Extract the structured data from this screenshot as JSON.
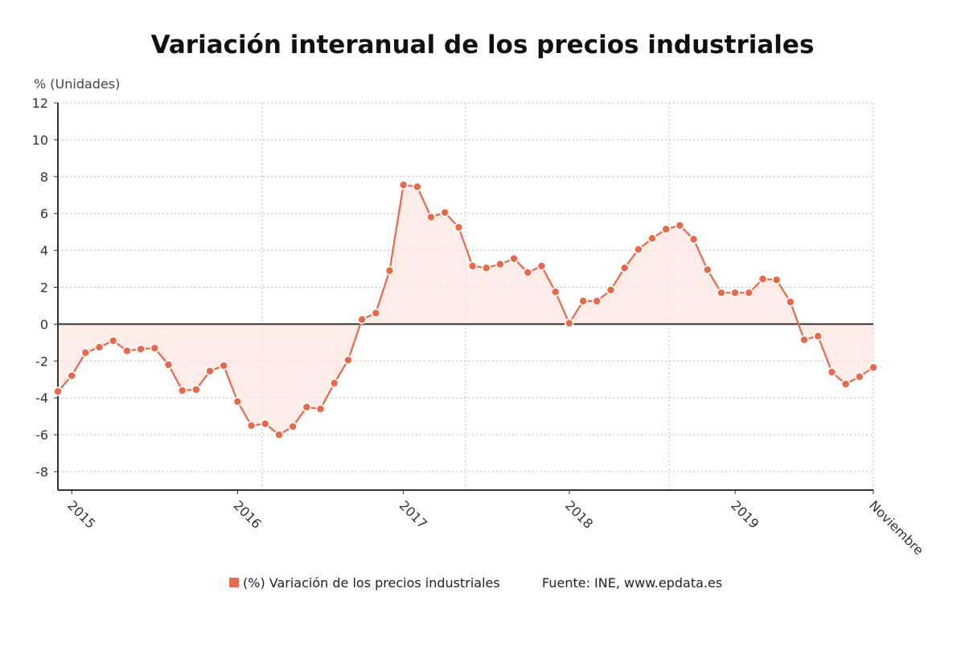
{
  "chart_data": {
    "type": "line",
    "title": "Variación interanual de los precios industriales",
    "ylabel": "% (Unidades)",
    "xlabel": "",
    "ylim": [
      -9,
      12
    ],
    "yticks": [
      12,
      10,
      8,
      6,
      4,
      2,
      0,
      -2,
      -4,
      -6,
      -8
    ],
    "xtick_labels": [
      "2015",
      "2016",
      "2017",
      "2018",
      "2019",
      "Noviembre"
    ],
    "x_start": "Diciembre 2014",
    "x_end": "Noviembre 2019",
    "grid": true,
    "legend_position": "bottom",
    "series": [
      {
        "name": "(%) Variación de los precios industriales",
        "color": "#e8694a",
        "values": [
          -3.65,
          -2.8,
          -1.55,
          -1.25,
          -0.9,
          -1.45,
          -1.35,
          -1.3,
          -2.2,
          -3.6,
          -3.55,
          -2.55,
          -2.25,
          -4.2,
          -5.5,
          -5.4,
          -6.0,
          -5.55,
          -4.5,
          -4.6,
          -3.2,
          -1.95,
          0.25,
          0.6,
          2.9,
          7.55,
          7.45,
          5.8,
          6.05,
          5.25,
          3.15,
          3.05,
          3.25,
          3.55,
          2.8,
          3.15,
          1.75,
          0.05,
          1.25,
          1.25,
          1.85,
          3.05,
          4.05,
          4.65,
          5.15,
          5.35,
          4.6,
          2.95,
          1.7,
          1.7,
          1.7,
          2.45,
          2.4,
          1.2,
          -0.85,
          -0.65,
          -2.6,
          -3.25,
          -2.85,
          -2.35
        ]
      }
    ],
    "source": "Fuente: INE, www.epdata.es"
  }
}
